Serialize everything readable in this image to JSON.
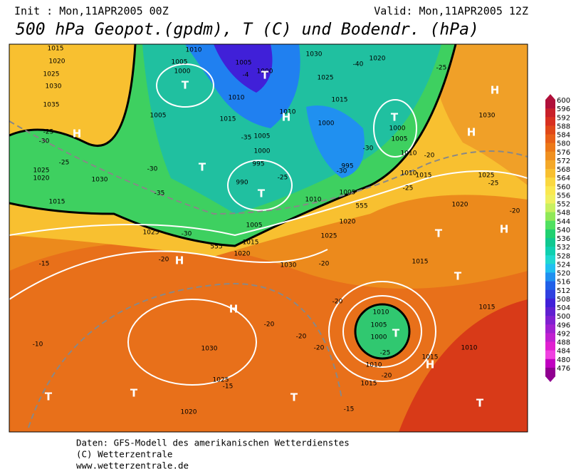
{
  "header": {
    "init": "Init : Mon,11APR2005 00Z",
    "valid": "Valid: Mon,11APR2005 12Z",
    "title": "500 hPa Geopot.(gpdm), T (C) und Bodendr. (hPa)"
  },
  "colorbar": {
    "levels": [
      600,
      596,
      592,
      588,
      584,
      580,
      576,
      572,
      568,
      564,
      560,
      556,
      552,
      548,
      544,
      540,
      536,
      532,
      528,
      524,
      520,
      516,
      512,
      508,
      504,
      500,
      496,
      492,
      488,
      484,
      480,
      476
    ],
    "colors": [
      "#b0103a",
      "#c8202a",
      "#d83020",
      "#e04818",
      "#e86018",
      "#ec7818",
      "#f09020",
      "#f4a828",
      "#f8c030",
      "#fad840",
      "#fae850",
      "#f0f060",
      "#c8f060",
      "#90e858",
      "#50e060",
      "#20d070",
      "#10c890",
      "#10d0b0",
      "#20d8d0",
      "#20c0f0",
      "#2090f0",
      "#2060e8",
      "#3040e0",
      "#4020d8",
      "#6020d0",
      "#8020d0",
      "#a020d0",
      "#c020d0",
      "#e020d0",
      "#f040e0",
      "#c000c0",
      "#900090"
    ]
  },
  "map": {
    "labels": [
      "1015",
      "1020",
      "1025",
      "1030",
      "1035",
      "H",
      "-25",
      "-30",
      "-25",
      "1025",
      "1020",
      "1030",
      "1015",
      "1010",
      "1005",
      "1000",
      "T",
      "1005",
      "1000",
      "-4",
      "T",
      "1010",
      "1010",
      "H",
      "1005",
      "1015",
      "-35",
      "1005",
      "T",
      "1000",
      "995",
      "-25",
      "990",
      "T",
      "1005",
      "1015",
      "1020",
      "1025",
      "-30",
      "-35",
      "-30",
      "555",
      "-20",
      "H",
      "-15",
      "1030",
      "-40",
      "1020",
      "1025",
      "1015",
      "1000",
      "T",
      "1000",
      "1005",
      "-30",
      "995",
      "-30",
      "1010",
      "1010",
      "1015",
      "1005",
      "1010",
      "-25",
      "555",
      "1020",
      "1025",
      "-25",
      "H",
      "1030",
      "H",
      "-20",
      "1025",
      "-25",
      "1020",
      "-20",
      "T",
      "H",
      "1015",
      "T",
      "1015",
      "1030",
      "-20",
      "1010",
      "1005",
      "1000",
      "T",
      "-25",
      "1015",
      "H",
      "1010",
      "1010",
      "-20",
      "1015",
      "H",
      "-20",
      "-20",
      "-20",
      "1030",
      "-10",
      "1025",
      "-15",
      "T",
      "T",
      "1020",
      "T",
      "-15",
      "T",
      "-20"
    ]
  },
  "footer": {
    "lines": [
      "Daten: GFS-Modell des amerikanischen Wetterdienstes",
      "(C) Wetterzentrale",
      "www.wetterzentrale.de"
    ]
  }
}
